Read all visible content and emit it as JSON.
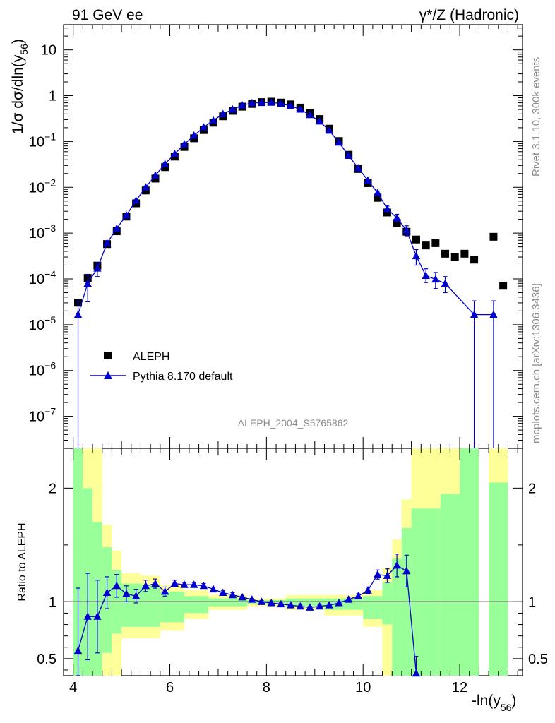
{
  "chart_data": {
    "type": "scatter",
    "header_left": "91 GeV ee",
    "header_right": "γ*/Z (Hadronic)",
    "watermark": "ALEPH_2004_S5765862",
    "side_top": "Rivet 3.1.10,  300k events",
    "side_bottom": "mcplots.cern.ch [arXiv:1306.3436]",
    "xlabel": "-ln(y",
    "xlabel_sub": "56",
    "xlabel_close": ")",
    "ylabel_main": "1/σ  dσ/dln(y",
    "ylabel_sub": "56",
    "ylabel_close": ")",
    "ylabel_ratio": "Ratio to ALEPH",
    "xlim": [
      3.8,
      13.3
    ],
    "ylim_main": [
      -7.7,
      1.55
    ],
    "ylim_ratio": [
      0.35,
      2.35
    ],
    "x_ticks": [
      "4",
      "6",
      "8",
      "10",
      "12"
    ],
    "main_ticks": [
      {
        "exp": 1,
        "label": "10"
      },
      {
        "exp": 0,
        "label": "1"
      },
      {
        "exp": -1,
        "label": "10",
        "sup": "−1"
      },
      {
        "exp": -2,
        "label": "10",
        "sup": "−2"
      },
      {
        "exp": -3,
        "label": "10",
        "sup": "−3"
      },
      {
        "exp": -4,
        "label": "10",
        "sup": "−4"
      },
      {
        "exp": -5,
        "label": "10",
        "sup": "−5"
      },
      {
        "exp": -6,
        "label": "10",
        "sup": "−6"
      },
      {
        "exp": -7,
        "label": "10",
        "sup": "−7"
      }
    ],
    "ratio_ticks": [
      "0.5",
      "1",
      "2"
    ],
    "legend": [
      {
        "name": "ALEPH",
        "marker": "square",
        "color": "#000000"
      },
      {
        "name": "Pythia 8.170 default",
        "marker": "triangle",
        "color": "#0000cc"
      }
    ],
    "series": [
      {
        "name": "ALEPH",
        "x": [
          4.1,
          4.3,
          4.5,
          4.7,
          4.9,
          5.1,
          5.3,
          5.5,
          5.7,
          5.9,
          6.1,
          6.3,
          6.5,
          6.7,
          6.9,
          7.1,
          7.3,
          7.5,
          7.7,
          7.9,
          8.1,
          8.3,
          8.5,
          8.7,
          8.9,
          9.1,
          9.3,
          9.5,
          9.7,
          9.9,
          10.1,
          10.3,
          10.5,
          10.7,
          10.9,
          11.1,
          11.3,
          11.5,
          11.7,
          11.9,
          12.1,
          12.3,
          12.7,
          12.9
        ],
        "log10y": [
          -4.52,
          -3.98,
          -3.71,
          -3.24,
          -2.96,
          -2.64,
          -2.35,
          -2.07,
          -1.81,
          -1.56,
          -1.33,
          -1.12,
          -0.93,
          -0.75,
          -0.59,
          -0.45,
          -0.33,
          -0.24,
          -0.18,
          -0.14,
          -0.13,
          -0.15,
          -0.19,
          -0.26,
          -0.37,
          -0.51,
          -0.72,
          -0.99,
          -1.29,
          -1.6,
          -1.91,
          -2.23,
          -2.55,
          -2.78,
          -2.97,
          -3.14,
          -3.27,
          -3.22,
          -3.45,
          -3.52,
          -3.45,
          -3.58,
          -3.08,
          -4.15
        ]
      },
      {
        "name": "Pythia 8.170 default",
        "x": [
          4.1,
          4.3,
          4.5,
          4.7,
          4.9,
          5.1,
          5.3,
          5.5,
          5.7,
          5.9,
          6.1,
          6.3,
          6.5,
          6.7,
          6.9,
          7.1,
          7.3,
          7.5,
          7.7,
          7.9,
          8.1,
          8.3,
          8.5,
          8.7,
          8.9,
          9.1,
          9.3,
          9.5,
          9.7,
          9.9,
          10.1,
          10.3,
          10.5,
          10.7,
          10.9,
          11.1,
          11.3,
          11.5,
          11.7,
          12.3,
          12.7
        ],
        "log10y": [
          -4.78,
          -4.1,
          -3.77,
          -3.22,
          -2.9,
          -2.61,
          -2.29,
          -2.0,
          -1.74,
          -1.49,
          -1.27,
          -1.06,
          -0.87,
          -0.69,
          -0.54,
          -0.4,
          -0.3,
          -0.21,
          -0.16,
          -0.15,
          -0.15,
          -0.17,
          -0.22,
          -0.3,
          -0.42,
          -0.56,
          -0.76,
          -1.02,
          -1.31,
          -1.58,
          -1.85,
          -2.12,
          -2.47,
          -2.67,
          -2.94,
          -3.5,
          -3.93,
          -4.01,
          -4.1,
          -4.78,
          -4.78
        ],
        "err_lo": [
          4.0,
          0.4,
          0.18,
          0.05,
          0.03,
          0.02,
          0.02,
          0.02,
          0.02,
          0.02,
          0.02,
          0.02,
          0.02,
          0.02,
          0.02,
          0.02,
          0.02,
          0.02,
          0.02,
          0.02,
          0.02,
          0.02,
          0.02,
          0.02,
          0.02,
          0.02,
          0.02,
          0.02,
          0.02,
          0.02,
          0.03,
          0.04,
          0.06,
          0.08,
          0.12,
          0.2,
          0.15,
          0.2,
          0.2,
          4.0,
          4.0
        ],
        "err_hi": [
          0.3,
          0.2,
          0.12,
          0.05,
          0.03,
          0.02,
          0.02,
          0.02,
          0.02,
          0.02,
          0.02,
          0.02,
          0.02,
          0.02,
          0.02,
          0.02,
          0.02,
          0.02,
          0.02,
          0.02,
          0.02,
          0.02,
          0.02,
          0.02,
          0.02,
          0.02,
          0.02,
          0.02,
          0.02,
          0.02,
          0.03,
          0.04,
          0.06,
          0.08,
          0.1,
          0.14,
          0.15,
          0.15,
          0.15,
          0.3,
          0.3
        ]
      }
    ],
    "ratio": {
      "x": [
        4.1,
        4.3,
        4.5,
        4.7,
        4.9,
        5.1,
        5.3,
        5.5,
        5.7,
        5.9,
        6.1,
        6.3,
        6.5,
        6.7,
        6.9,
        7.1,
        7.3,
        7.5,
        7.7,
        7.9,
        8.1,
        8.3,
        8.5,
        8.7,
        8.9,
        9.1,
        9.3,
        9.5,
        9.7,
        9.9,
        10.1,
        10.3,
        10.5,
        10.7,
        10.9,
        11.1
      ],
      "values": [
        0.57,
        0.87,
        0.87,
        1.08,
        1.14,
        1.07,
        1.05,
        1.14,
        1.16,
        1.09,
        1.16,
        1.15,
        1.15,
        1.14,
        1.11,
        1.08,
        1.06,
        1.04,
        1.02,
        1.0,
        0.99,
        0.98,
        0.97,
        0.96,
        0.95,
        0.96,
        0.97,
        0.99,
        1.02,
        1.05,
        1.1,
        1.24,
        1.23,
        1.32,
        1.27,
        0.37
      ],
      "err": [
        0.55,
        0.38,
        0.32,
        0.14,
        0.1,
        0.07,
        0.06,
        0.05,
        0.04,
        0.04,
        0.03,
        0.02,
        0.02,
        0.02,
        0.02,
        0.02,
        0.02,
        0.01,
        0.01,
        0.01,
        0.01,
        0.01,
        0.01,
        0.01,
        0.01,
        0.01,
        0.01,
        0.01,
        0.02,
        0.02,
        0.03,
        0.04,
        0.06,
        0.1,
        0.14,
        0.15
      ],
      "bands": [
        {
          "lo": 4.0,
          "hi": 4.2,
          "y_lo": 0.35,
          "y_hi": 2.35,
          "g_lo": 0.35,
          "g_hi": 2.35
        },
        {
          "lo": 4.2,
          "hi": 4.4,
          "y_lo": 0.35,
          "y_hi": 2.35,
          "g_lo": 0.35,
          "g_hi": 2.0
        },
        {
          "lo": 4.4,
          "hi": 4.6,
          "y_lo": 0.35,
          "y_hi": 2.35,
          "g_lo": 0.35,
          "g_hi": 1.7
        },
        {
          "lo": 4.6,
          "hi": 4.8,
          "y_lo": 0.35,
          "y_hi": 1.68,
          "g_lo": 0.55,
          "g_hi": 1.48
        },
        {
          "lo": 4.8,
          "hi": 5.0,
          "y_lo": 0.35,
          "y_hi": 1.45,
          "g_lo": 0.72,
          "g_hi": 1.28
        },
        {
          "lo": 5.0,
          "hi": 5.4,
          "y_lo": 0.68,
          "y_hi": 1.25,
          "g_lo": 0.78,
          "g_hi": 1.16
        },
        {
          "lo": 5.4,
          "hi": 5.8,
          "y_lo": 0.68,
          "y_hi": 1.23,
          "g_lo": 0.78,
          "g_hi": 1.15
        },
        {
          "lo": 5.8,
          "hi": 6.3,
          "y_lo": 0.75,
          "y_hi": 1.15,
          "g_lo": 0.82,
          "g_hi": 1.09
        },
        {
          "lo": 6.3,
          "hi": 6.8,
          "y_lo": 0.85,
          "y_hi": 1.1,
          "g_lo": 0.9,
          "g_hi": 1.05
        },
        {
          "lo": 6.8,
          "hi": 7.6,
          "y_lo": 0.93,
          "y_hi": 1.06,
          "g_lo": 0.96,
          "g_hi": 1.03
        },
        {
          "lo": 7.6,
          "hi": 8.4,
          "y_lo": 0.96,
          "y_hi": 1.03,
          "g_lo": 0.98,
          "g_hi": 1.015
        },
        {
          "lo": 8.4,
          "hi": 9.2,
          "y_lo": 0.93,
          "y_hi": 1.06,
          "g_lo": 0.96,
          "g_hi": 1.03
        },
        {
          "lo": 9.2,
          "hi": 10.0,
          "y_lo": 0.88,
          "y_hi": 1.06,
          "g_lo": 0.93,
          "g_hi": 1.03
        },
        {
          "lo": 10.0,
          "hi": 10.4,
          "y_lo": 0.78,
          "y_hi": 1.1,
          "g_lo": 0.85,
          "g_hi": 1.05
        },
        {
          "lo": 10.4,
          "hi": 10.6,
          "y_lo": 0.35,
          "y_hi": 1.3,
          "g_lo": 0.8,
          "g_hi": 1.17
        },
        {
          "lo": 10.6,
          "hi": 10.8,
          "y_lo": 0.35,
          "y_hi": 1.55,
          "g_lo": 0.35,
          "g_hi": 1.38
        },
        {
          "lo": 10.8,
          "hi": 11.0,
          "y_lo": 0.35,
          "y_hi": 1.9,
          "g_lo": 0.35,
          "g_hi": 1.65
        },
        {
          "lo": 11.0,
          "hi": 11.6,
          "y_lo": 0.35,
          "y_hi": 2.35,
          "g_lo": 0.35,
          "g_hi": 1.82
        },
        {
          "lo": 11.6,
          "hi": 12.0,
          "y_lo": 0.35,
          "y_hi": 2.35,
          "g_lo": 0.35,
          "g_hi": 1.95
        },
        {
          "lo": 12.0,
          "hi": 12.4,
          "y_lo": 0.35,
          "y_hi": 2.35,
          "g_lo": 0.35,
          "g_hi": 2.35
        },
        {
          "lo": 12.6,
          "hi": 13.0,
          "y_lo": 0.35,
          "y_hi": 2.35,
          "g_lo": 0.35,
          "g_hi": 2.05
        }
      ]
    }
  }
}
